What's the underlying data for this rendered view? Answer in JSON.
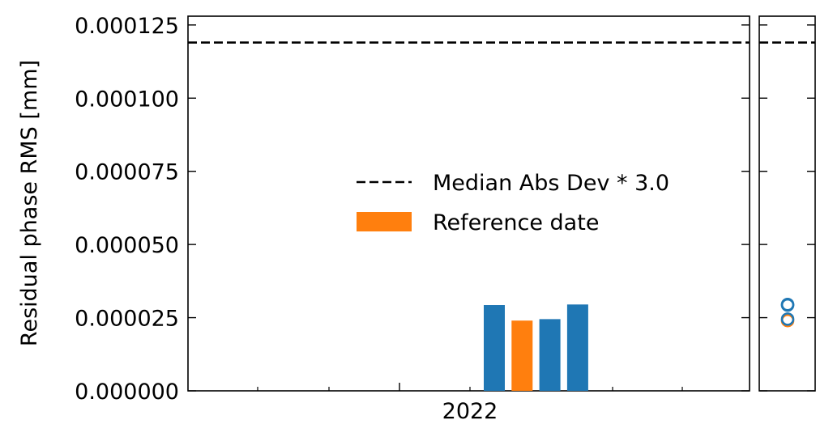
{
  "chart_data": {
    "type": "bar",
    "ylabel": "Residual phase RMS [mm]",
    "ylim": [
      0,
      0.000128
    ],
    "yticks": [
      "0.000000",
      "0.000025",
      "0.000050",
      "0.000075",
      "0.000100",
      "0.000125"
    ],
    "ytick_values": [
      0,
      2.5e-05,
      5e-05,
      7.5e-05,
      0.0001,
      0.000125
    ],
    "xtick_label": "2022",
    "threshold": {
      "label": "Median Abs Dev * 3.0",
      "value": 0.000119
    },
    "bars": [
      {
        "value": 2.93e-05,
        "reference": false
      },
      {
        "value": 2.4e-05,
        "reference": true
      },
      {
        "value": 2.45e-05,
        "reference": false
      },
      {
        "value": 2.95e-05,
        "reference": false
      }
    ],
    "reference_label": "Reference date",
    "side_points": [
      {
        "value": 2.93e-05,
        "reference": false
      },
      {
        "value": 2.4e-05,
        "reference": true
      },
      {
        "value": 2.45e-05,
        "reference": false
      },
      {
        "value": 2.95e-05,
        "reference": false
      }
    ],
    "legend_position": "center-right",
    "grid": false
  },
  "colors": {
    "bar": "#1f77b4",
    "reference": "#ff7f0e",
    "line": "#000000"
  }
}
